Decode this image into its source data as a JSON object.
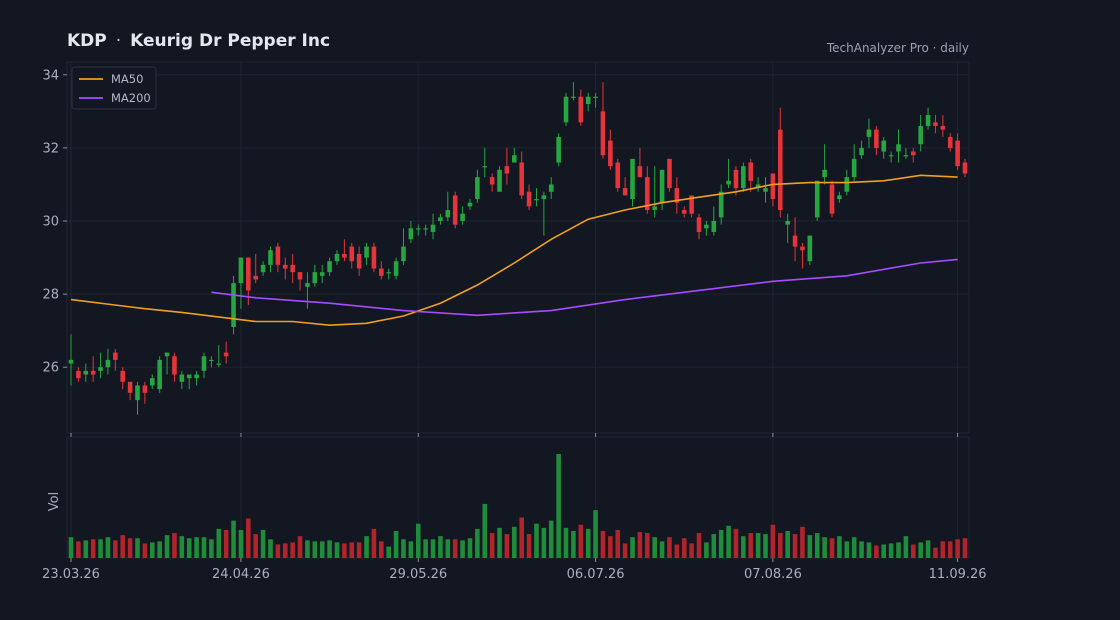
{
  "header": {
    "ticker": "KDP",
    "separator": "·",
    "company": "Keurig Dr Pepper Inc",
    "source": "TechAnalyzer Pro · daily"
  },
  "colors": {
    "background": "#131722",
    "grid": "#1f2433",
    "up": "#26a641",
    "down": "#e5353b",
    "ma50": "#f0a020",
    "ma200": "#a64dff",
    "vol_up": "#1e8c3a",
    "vol_down": "#b0242c"
  },
  "chart_data": [
    {
      "type": "candlestick",
      "ylim": [
        24.2,
        34.35
      ],
      "yticks": [
        26,
        28,
        30,
        32,
        34
      ],
      "xticks": [
        "23.03.26",
        "24.04.26",
        "29.05.26",
        "06.07.26",
        "07.08.26",
        "11.09.26"
      ],
      "xtick_index": [
        0,
        23,
        47,
        71,
        95,
        120
      ],
      "grid": true,
      "legend_position": "top-left",
      "candles": [
        [
          26.1,
          26.2,
          26.9,
          25.5
        ],
        [
          25.9,
          25.7,
          26.0,
          25.6
        ],
        [
          25.8,
          25.9,
          26.1,
          25.6
        ],
        [
          25.9,
          25.8,
          26.3,
          25.6
        ],
        [
          25.9,
          26.0,
          26.4,
          25.7
        ],
        [
          26.0,
          26.2,
          26.5,
          25.8
        ],
        [
          26.4,
          26.2,
          26.5,
          25.9
        ],
        [
          25.9,
          25.6,
          26.0,
          25.4
        ],
        [
          25.6,
          25.3,
          25.6,
          25.1
        ],
        [
          25.1,
          25.5,
          25.6,
          24.7
        ],
        [
          25.5,
          25.3,
          25.6,
          25.0
        ],
        [
          25.5,
          25.7,
          25.8,
          25.4
        ],
        [
          25.4,
          26.2,
          26.3,
          25.3
        ],
        [
          26.3,
          26.4,
          26.4,
          25.8
        ],
        [
          26.3,
          25.8,
          26.4,
          25.6
        ],
        [
          25.6,
          25.8,
          25.9,
          25.4
        ],
        [
          25.7,
          25.8,
          25.8,
          25.4
        ],
        [
          25.7,
          25.8,
          25.9,
          25.5
        ],
        [
          25.9,
          26.3,
          26.4,
          25.7
        ],
        [
          26.2,
          26.2,
          26.3,
          26.0
        ],
        [
          26.1,
          26.1,
          26.6,
          26.0
        ],
        [
          26.4,
          26.3,
          26.7,
          26.1
        ],
        [
          27.1,
          28.3,
          28.5,
          26.9
        ],
        [
          28.3,
          29.0,
          29.0,
          27.6
        ],
        [
          29.0,
          28.1,
          29.0,
          27.7
        ],
        [
          28.5,
          28.4,
          29.1,
          28.3
        ],
        [
          28.6,
          28.8,
          28.9,
          28.5
        ],
        [
          28.8,
          29.2,
          29.3,
          28.6
        ],
        [
          29.3,
          28.8,
          29.4,
          28.6
        ],
        [
          28.8,
          28.7,
          29.0,
          28.4
        ],
        [
          28.8,
          28.6,
          29.1,
          28.3
        ],
        [
          28.6,
          28.4,
          28.6,
          28.1
        ],
        [
          28.2,
          28.3,
          28.6,
          27.6
        ],
        [
          28.3,
          28.6,
          28.8,
          28.2
        ],
        [
          28.5,
          28.6,
          28.8,
          28.3
        ],
        [
          28.6,
          28.9,
          29.0,
          28.5
        ],
        [
          28.9,
          29.1,
          29.2,
          28.8
        ],
        [
          29.1,
          29.0,
          29.5,
          28.9
        ],
        [
          29.3,
          28.9,
          29.4,
          28.7
        ],
        [
          29.1,
          28.7,
          29.3,
          28.5
        ],
        [
          29.0,
          29.3,
          29.4,
          28.8
        ],
        [
          29.3,
          28.7,
          29.4,
          28.6
        ],
        [
          28.7,
          28.5,
          28.9,
          28.4
        ],
        [
          28.6,
          28.6,
          28.7,
          28.4
        ],
        [
          28.5,
          28.9,
          29.0,
          28.4
        ],
        [
          28.9,
          29.3,
          29.8,
          28.8
        ],
        [
          29.5,
          29.8,
          30.0,
          29.4
        ],
        [
          29.8,
          29.8,
          29.9,
          29.6
        ],
        [
          29.8,
          29.8,
          29.9,
          29.6
        ],
        [
          29.7,
          29.9,
          30.2,
          29.5
        ],
        [
          30.0,
          30.1,
          30.2,
          29.9
        ],
        [
          30.1,
          30.3,
          30.8,
          30.0
        ],
        [
          30.7,
          29.9,
          30.8,
          29.8
        ],
        [
          30.0,
          30.2,
          30.4,
          29.9
        ],
        [
          30.4,
          30.5,
          30.6,
          30.3
        ],
        [
          30.6,
          31.2,
          31.4,
          30.5
        ],
        [
          31.5,
          31.5,
          32.0,
          31.2
        ],
        [
          31.2,
          31.0,
          31.3,
          30.8
        ],
        [
          30.8,
          31.4,
          31.5,
          30.8
        ],
        [
          31.5,
          31.3,
          32.0,
          31.0
        ],
        [
          31.6,
          31.8,
          32.0,
          31.6
        ],
        [
          31.6,
          30.7,
          31.9,
          30.6
        ],
        [
          30.8,
          30.4,
          31.0,
          30.3
        ],
        [
          30.6,
          30.6,
          30.9,
          30.4
        ],
        [
          30.6,
          30.7,
          30.8,
          29.6
        ],
        [
          30.8,
          31.0,
          31.2,
          30.6
        ],
        [
          31.6,
          32.3,
          32.4,
          31.5
        ],
        [
          32.7,
          33.4,
          33.5,
          32.6
        ],
        [
          33.4,
          33.4,
          33.8,
          33.3
        ],
        [
          33.4,
          32.7,
          33.6,
          32.6
        ],
        [
          33.2,
          33.4,
          33.5,
          33.0
        ],
        [
          33.4,
          33.4,
          33.5,
          33.1
        ],
        [
          33.0,
          31.8,
          33.8,
          31.7
        ],
        [
          32.2,
          31.5,
          32.5,
          31.4
        ],
        [
          31.6,
          30.9,
          31.7,
          30.8
        ],
        [
          30.9,
          30.7,
          31.2,
          30.7
        ],
        [
          30.6,
          31.7,
          31.7,
          30.4
        ],
        [
          31.5,
          31.2,
          32.0,
          31.2
        ],
        [
          31.2,
          30.3,
          31.5,
          30.2
        ],
        [
          30.3,
          30.4,
          31.5,
          30.1
        ],
        [
          30.5,
          31.4,
          31.4,
          30.3
        ],
        [
          31.7,
          30.9,
          31.7,
          30.8
        ],
        [
          30.9,
          30.5,
          31.2,
          30.2
        ],
        [
          30.3,
          30.2,
          30.4,
          30.1
        ],
        [
          30.7,
          30.2,
          30.7,
          30.1
        ],
        [
          30.1,
          29.7,
          30.2,
          29.5
        ],
        [
          29.8,
          29.9,
          30.0,
          29.6
        ],
        [
          29.7,
          30.0,
          30.4,
          29.6
        ],
        [
          30.1,
          30.8,
          31.0,
          29.9
        ],
        [
          31.0,
          31.1,
          31.7,
          30.9
        ],
        [
          31.4,
          30.9,
          31.5,
          30.7
        ],
        [
          30.9,
          31.5,
          31.6,
          30.8
        ],
        [
          31.6,
          31.1,
          31.7,
          30.8
        ],
        [
          30.9,
          31.0,
          31.2,
          30.8
        ],
        [
          30.8,
          30.9,
          31.2,
          30.5
        ],
        [
          31.3,
          30.6,
          31.3,
          30.4
        ],
        [
          32.5,
          30.3,
          33.1,
          30.1
        ],
        [
          29.9,
          30.0,
          30.2,
          29.4
        ],
        [
          29.6,
          29.3,
          30.1,
          28.9
        ],
        [
          29.3,
          29.2,
          29.4,
          28.7
        ],
        [
          28.9,
          29.6,
          29.6,
          28.8
        ],
        [
          30.1,
          31.1,
          31.1,
          30.0
        ],
        [
          31.2,
          31.4,
          32.1,
          31.0
        ],
        [
          31.0,
          30.2,
          31.1,
          30.1
        ],
        [
          30.6,
          30.7,
          30.8,
          30.5
        ],
        [
          30.8,
          31.2,
          31.4,
          30.7
        ],
        [
          31.2,
          31.7,
          32.1,
          31.1
        ],
        [
          31.8,
          32.0,
          32.2,
          31.7
        ],
        [
          32.3,
          32.5,
          32.8,
          32.0
        ],
        [
          32.5,
          32.0,
          32.6,
          31.8
        ],
        [
          31.9,
          32.2,
          32.3,
          31.7
        ],
        [
          31.8,
          31.8,
          31.9,
          31.6
        ],
        [
          31.9,
          32.1,
          32.5,
          31.6
        ],
        [
          31.8,
          31.8,
          32.0,
          31.7
        ],
        [
          31.9,
          31.8,
          32.0,
          31.6
        ],
        [
          32.1,
          32.6,
          32.9,
          31.9
        ],
        [
          32.6,
          32.9,
          33.1,
          32.5
        ],
        [
          32.7,
          32.6,
          32.9,
          32.4
        ],
        [
          32.6,
          32.5,
          32.9,
          32.3
        ],
        [
          32.3,
          32.0,
          32.4,
          31.9
        ],
        [
          32.2,
          31.5,
          32.4,
          31.4
        ],
        [
          31.6,
          31.3,
          31.7,
          31.2
        ]
      ],
      "ma50": [
        [
          0,
          27.85
        ],
        [
          10,
          27.6
        ],
        [
          15,
          27.5
        ],
        [
          25,
          27.25
        ],
        [
          30,
          27.25
        ],
        [
          35,
          27.15
        ],
        [
          40,
          27.2
        ],
        [
          45,
          27.4
        ],
        [
          50,
          27.75
        ],
        [
          55,
          28.25
        ],
        [
          60,
          28.85
        ],
        [
          65,
          29.5
        ],
        [
          70,
          30.05
        ],
        [
          75,
          30.3
        ],
        [
          80,
          30.5
        ],
        [
          85,
          30.65
        ],
        [
          90,
          30.8
        ],
        [
          95,
          31.0
        ],
        [
          100,
          31.05
        ],
        [
          105,
          31.05
        ],
        [
          110,
          31.1
        ],
        [
          115,
          31.25
        ],
        [
          120,
          31.2
        ]
      ],
      "ma200": [
        [
          19,
          28.05
        ],
        [
          25,
          27.9
        ],
        [
          35,
          27.75
        ],
        [
          45,
          27.55
        ],
        [
          55,
          27.42
        ],
        [
          65,
          27.55
        ],
        [
          75,
          27.85
        ],
        [
          85,
          28.1
        ],
        [
          95,
          28.35
        ],
        [
          105,
          28.5
        ],
        [
          115,
          28.85
        ],
        [
          120,
          28.95
        ]
      ],
      "legend": [
        {
          "name": "MA50",
          "color": "#f0a020"
        },
        {
          "name": "MA200",
          "color": "#a64dff"
        }
      ]
    },
    {
      "type": "bar",
      "ylabel": "Vol",
      "ylim": [
        0,
        1.0
      ],
      "values": [
        0.2,
        0.16,
        0.17,
        0.18,
        0.18,
        0.2,
        0.17,
        0.22,
        0.19,
        0.19,
        0.14,
        0.15,
        0.16,
        0.22,
        0.24,
        0.21,
        0.19,
        0.2,
        0.2,
        0.18,
        0.28,
        0.27,
        0.36,
        0.27,
        0.38,
        0.23,
        0.27,
        0.18,
        0.13,
        0.14,
        0.15,
        0.21,
        0.17,
        0.16,
        0.16,
        0.17,
        0.15,
        0.14,
        0.15,
        0.15,
        0.21,
        0.28,
        0.16,
        0.11,
        0.26,
        0.18,
        0.16,
        0.33,
        0.18,
        0.18,
        0.21,
        0.18,
        0.18,
        0.17,
        0.19,
        0.28,
        0.52,
        0.24,
        0.29,
        0.23,
        0.3,
        0.39,
        0.23,
        0.33,
        0.29,
        0.36,
        1.0,
        0.29,
        0.26,
        0.32,
        0.28,
        0.46,
        0.26,
        0.21,
        0.27,
        0.14,
        0.2,
        0.25,
        0.24,
        0.2,
        0.16,
        0.2,
        0.13,
        0.19,
        0.14,
        0.24,
        0.15,
        0.23,
        0.27,
        0.31,
        0.28,
        0.21,
        0.24,
        0.24,
        0.23,
        0.32,
        0.24,
        0.26,
        0.23,
        0.3,
        0.22,
        0.24,
        0.2,
        0.19,
        0.21,
        0.16,
        0.2,
        0.16,
        0.15,
        0.12,
        0.13,
        0.14,
        0.15,
        0.21,
        0.13,
        0.15,
        0.17,
        0.1,
        0.16,
        0.16,
        0.18,
        0.19
      ]
    }
  ]
}
